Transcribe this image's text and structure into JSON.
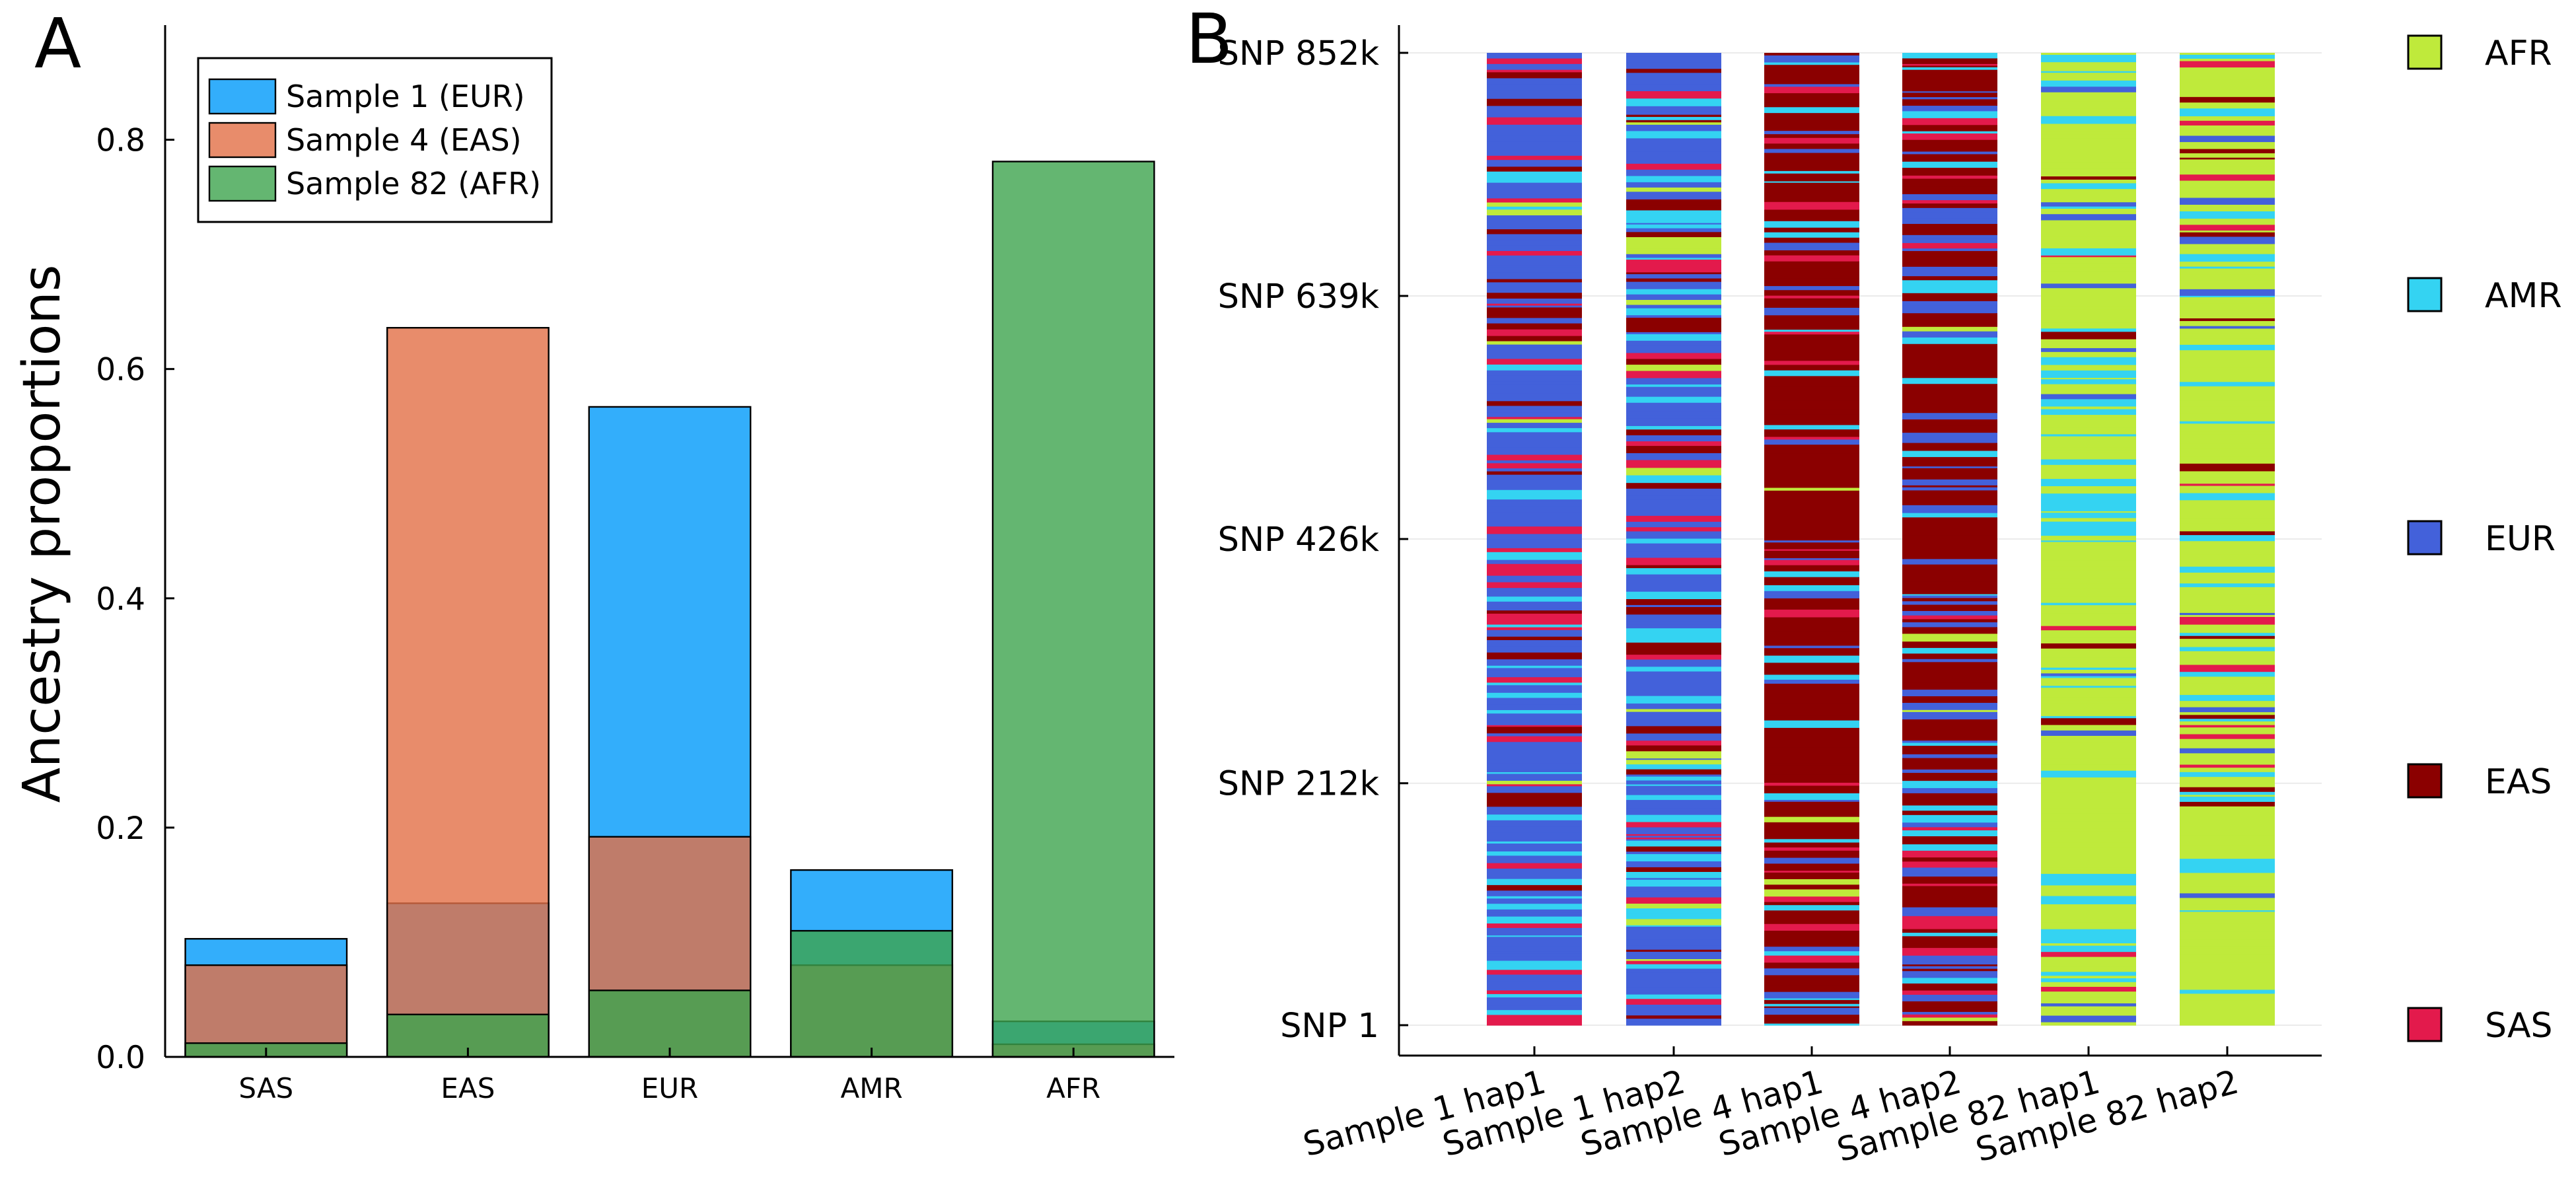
{
  "chart_data": [
    {
      "panel_label": "A",
      "type": "bar",
      "ylabel": "Ancestry proportions",
      "ylim": [
        0,
        0.9
      ],
      "yticks": [
        "0.0",
        "0.2",
        "0.4",
        "0.6",
        "0.8"
      ],
      "ytick_values": [
        0,
        0.2,
        0.4,
        0.6,
        0.8
      ],
      "categories": [
        "SAS",
        "EAS",
        "EUR",
        "AMR",
        "AFR"
      ],
      "overlay": true,
      "legend_position": "top-left",
      "series": [
        {
          "name": "Sample 1 (EUR)",
          "color": "#009AFA",
          "values": [
            0.103,
            0.134,
            0.567,
            0.163,
            0.031
          ]
        },
        {
          "name": "Sample 4 (EAS)",
          "color": "#E26F46",
          "values": [
            0.08,
            0.636,
            0.192,
            0.08,
            0.011
          ]
        },
        {
          "name": "Sample 82 (AFR)",
          "color": "#3DA44D",
          "values": [
            0.012,
            0.037,
            0.058,
            0.11,
            0.781
          ]
        }
      ]
    },
    {
      "panel_label": "B",
      "type": "heatmap",
      "y_ticks": [
        "SNP 1",
        "SNP 212k",
        "SNP 426k",
        "SNP 639k",
        "SNP 852k"
      ],
      "y_tick_values": [
        1,
        212000,
        426000,
        639000,
        852000
      ],
      "columns": [
        "Sample 1 hap1",
        "Sample 1 hap2",
        "Sample 4 hap1",
        "Sample 4 hap2",
        "Sample 82 hap1",
        "Sample 82 hap2"
      ],
      "legend_position": "right",
      "legend": [
        {
          "label": "AFR",
          "color": "#BFEA3B"
        },
        {
          "label": "AMR",
          "color": "#34D3F2"
        },
        {
          "label": "EUR",
          "color": "#4361DA"
        },
        {
          "label": "EAS",
          "color": "#8B0000"
        },
        {
          "label": "SAS",
          "color": "#E31A4C"
        }
      ],
      "column_ancestry_weights": [
        {
          "AFR": 0.03,
          "AMR": 0.14,
          "EUR": 0.62,
          "EAS": 0.08,
          "SAS": 0.13
        },
        {
          "AFR": 0.04,
          "AMR": 0.2,
          "EUR": 0.5,
          "EAS": 0.12,
          "SAS": 0.14
        },
        {
          "AFR": 0.01,
          "AMR": 0.08,
          "EUR": 0.14,
          "EAS": 0.68,
          "SAS": 0.09
        },
        {
          "AFR": 0.01,
          "AMR": 0.08,
          "EUR": 0.24,
          "EAS": 0.58,
          "SAS": 0.09
        },
        {
          "AFR": 0.75,
          "AMR": 0.13,
          "EUR": 0.06,
          "EAS": 0.03,
          "SAS": 0.03
        },
        {
          "AFR": 0.78,
          "AMR": 0.1,
          "EUR": 0.06,
          "EAS": 0.03,
          "SAS": 0.03
        }
      ]
    }
  ]
}
